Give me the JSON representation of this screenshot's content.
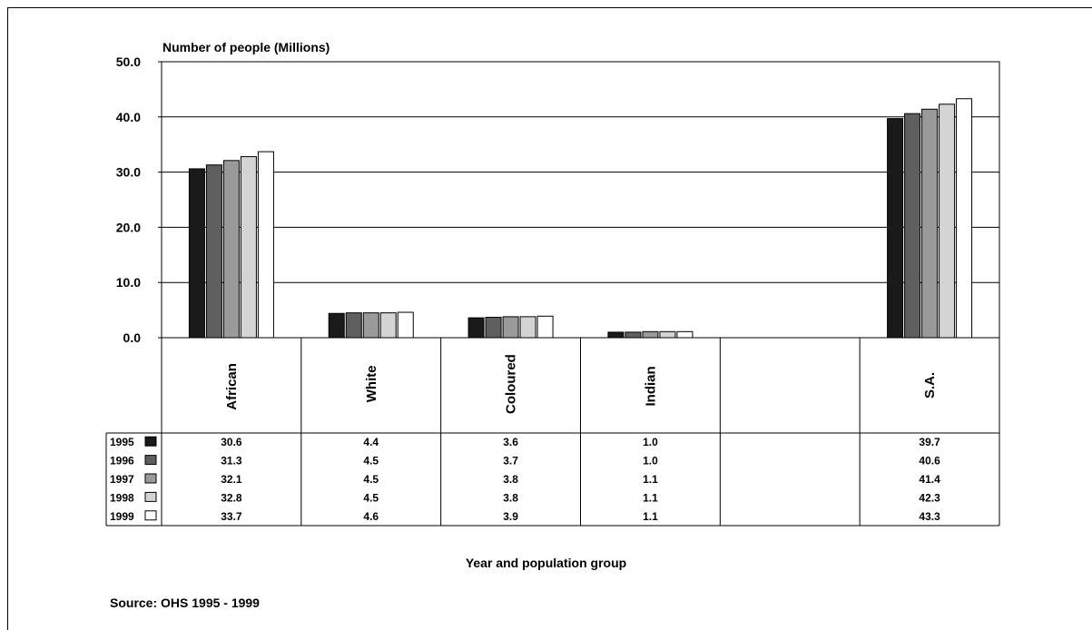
{
  "chart_data": {
    "type": "bar",
    "ylabel": "Number of people (Millions)",
    "xlabel": "Year and population group",
    "source": "Source: OHS 1995 - 1999",
    "ylim": [
      0,
      50
    ],
    "yticks": [
      "0.0",
      "10.0",
      "20.0",
      "30.0",
      "40.0",
      "50.0"
    ],
    "grid": true,
    "categories": [
      "African",
      "White",
      "Coloured",
      "Indian",
      "",
      "S.A."
    ],
    "series": [
      {
        "name": "1995",
        "color": "#1a1a1a",
        "values": [
          30.6,
          4.4,
          3.6,
          1.0,
          null,
          39.7
        ],
        "labels": [
          "30.6",
          "4.4",
          "3.6",
          "1.0",
          "",
          "39.7"
        ]
      },
      {
        "name": "1996",
        "color": "#5f5f5f",
        "values": [
          31.3,
          4.5,
          3.7,
          1.0,
          null,
          40.6
        ],
        "labels": [
          "31.3",
          "4.5",
          "3.7",
          "1.0",
          "",
          "40.6"
        ]
      },
      {
        "name": "1997",
        "color": "#9a9a9a",
        "values": [
          32.1,
          4.5,
          3.8,
          1.1,
          null,
          41.4
        ],
        "labels": [
          "32.1",
          "4.5",
          "3.8",
          "1.1",
          "",
          "41.4"
        ]
      },
      {
        "name": "1998",
        "color": "#d4d4d4",
        "values": [
          32.8,
          4.5,
          3.8,
          1.1,
          null,
          42.3
        ],
        "labels": [
          "32.8",
          "4.5",
          "3.8",
          "1.1",
          "",
          "42.3"
        ]
      },
      {
        "name": "1999",
        "color": "#ffffff",
        "values": [
          33.7,
          4.6,
          3.9,
          1.1,
          null,
          43.3
        ],
        "labels": [
          "33.7",
          "4.6",
          "3.9",
          "1.1",
          "",
          "43.3"
        ]
      }
    ]
  }
}
